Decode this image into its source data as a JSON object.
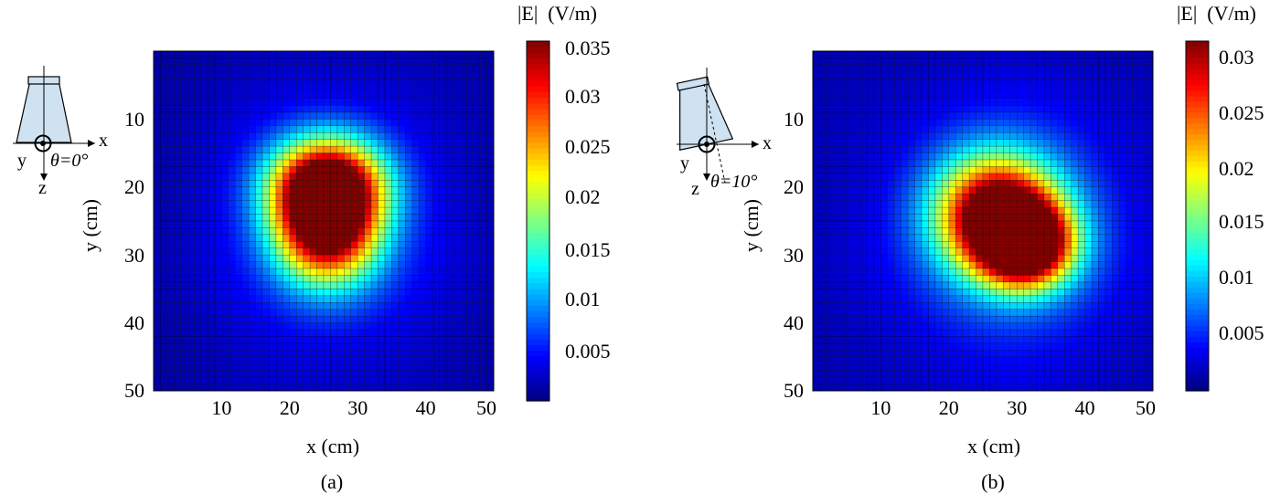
{
  "chart_data": [
    {
      "type": "heatmap",
      "panel_label": "(a)",
      "xlabel": "x (cm)",
      "ylabel": "y (cm)",
      "xlim": [
        0,
        50
      ],
      "ylim": [
        50,
        0
      ],
      "x_ticks": [
        "10",
        "20",
        "30",
        "40",
        "50"
      ],
      "y_ticks": [
        "10",
        "20",
        "30",
        "40",
        "50"
      ],
      "grid": true,
      "grid_cells": [
        50,
        50
      ],
      "colorbar": {
        "title": "|E|  (V/m)",
        "min": 0.0,
        "max": 0.036,
        "ticks": [
          "0.005",
          "0.01",
          "0.015",
          "0.02",
          "0.025",
          "0.03",
          "0.035"
        ],
        "colormap": "jet"
      },
      "inset": {
        "x_label": "x",
        "y_label": "y",
        "z_label": "z",
        "angle_label": "θ=0°",
        "tilt_deg": 0
      },
      "field_peaks": [
        {
          "x": 25.5,
          "y": 19.5,
          "value": 0.035
        },
        {
          "x": 25.5,
          "y": 25.5,
          "value": 0.034
        }
      ]
    },
    {
      "type": "heatmap",
      "panel_label": "(b)",
      "xlabel": "x (cm)",
      "ylabel": "y (cm)",
      "xlim": [
        0,
        50
      ],
      "ylim": [
        50,
        0
      ],
      "x_ticks": [
        "10",
        "20",
        "30",
        "40",
        "50"
      ],
      "y_ticks": [
        "10",
        "20",
        "30",
        "40",
        "50"
      ],
      "grid": true,
      "grid_cells": [
        50,
        50
      ],
      "colorbar": {
        "title": "|E|  (V/m)",
        "min": 0.0,
        "max": 0.031,
        "ticks": [
          "0.005",
          "0.01",
          "0.015",
          "0.02",
          "0.025",
          "0.03"
        ],
        "colormap": "jet"
      },
      "inset": {
        "x_label": "x",
        "y_label": "y",
        "z_label": "z",
        "angle_label": "θ=10°",
        "tilt_deg": 10
      },
      "field_peaks": [
        {
          "x": 27.5,
          "y": 24.0,
          "value": 0.031
        },
        {
          "x": 31.5,
          "y": 28.0,
          "value": 0.031
        }
      ]
    }
  ]
}
